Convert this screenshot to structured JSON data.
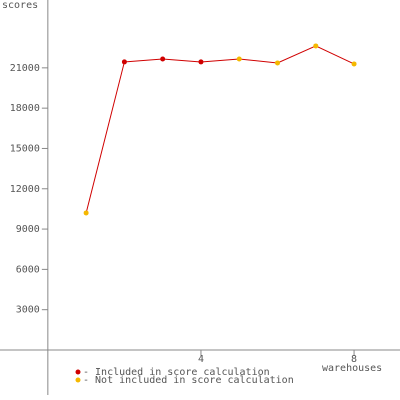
{
  "chart_data": {
    "type": "line",
    "y_label": "scores",
    "x_label": "warehouses",
    "x": [
      1,
      2,
      3,
      4,
      5,
      6,
      7,
      8
    ],
    "values": [
      10200,
      21440,
      21660,
      21440,
      21660,
      21365,
      22630,
      21290
    ],
    "included": [
      false,
      true,
      true,
      true,
      false,
      false,
      false,
      false
    ],
    "line_color": "#d00000",
    "included_color": "#d00000",
    "excluded_color": "#f5b800",
    "legend": [
      {
        "label": "- Included in score calculation",
        "color": "#d00000"
      },
      {
        "label": "- Not included in score calculation",
        "color": "#f5b800"
      }
    ],
    "xlim": [
      -1.25,
      9.2
    ],
    "ylim": [
      -3350,
      26050
    ],
    "xticks": [
      4,
      8
    ],
    "yticks": [
      3000,
      6000,
      9000,
      12000,
      15000,
      18000,
      21000
    ]
  }
}
